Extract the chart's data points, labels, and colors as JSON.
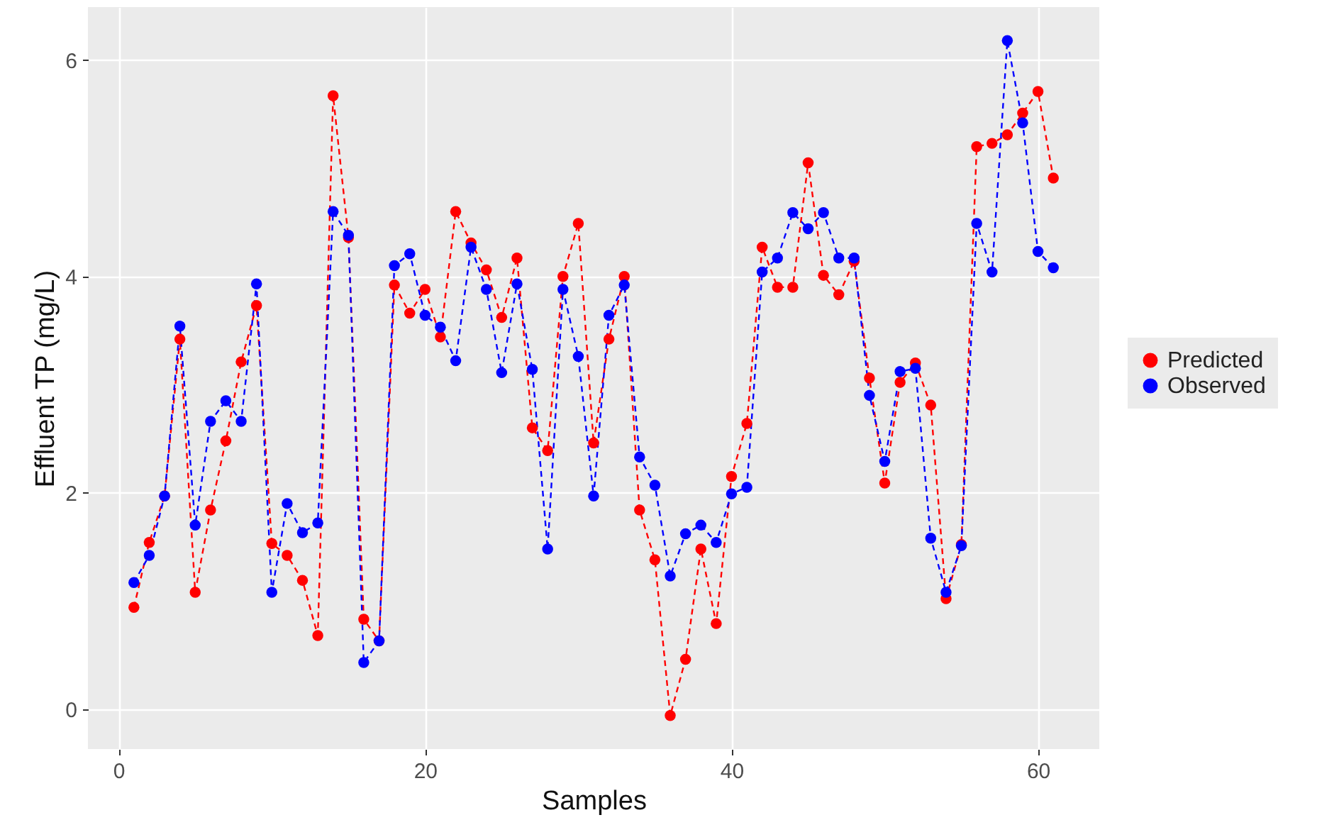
{
  "chart_data": {
    "type": "line",
    "xlabel": "Samples",
    "ylabel": "Effluent TP (mg/L)",
    "x": [
      1,
      2,
      3,
      4,
      5,
      6,
      7,
      8,
      9,
      10,
      11,
      12,
      13,
      14,
      15,
      16,
      17,
      18,
      19,
      20,
      21,
      22,
      23,
      24,
      25,
      26,
      27,
      28,
      29,
      30,
      31,
      32,
      33,
      34,
      35,
      36,
      37,
      38,
      39,
      40,
      41,
      42,
      43,
      44,
      45,
      46,
      47,
      48,
      49,
      50,
      51,
      52,
      53,
      54,
      55,
      56,
      57,
      58,
      59,
      60,
      61
    ],
    "series": [
      {
        "name": "Predicted",
        "color": "#ff0000",
        "values": [
          0.94,
          1.54,
          1.97,
          3.42,
          1.08,
          1.84,
          2.48,
          3.21,
          3.73,
          1.53,
          1.42,
          1.19,
          0.68,
          5.67,
          4.36,
          0.83,
          0.63,
          3.92,
          3.66,
          3.88,
          3.44,
          4.6,
          4.31,
          4.06,
          3.62,
          4.17,
          2.6,
          2.39,
          4.0,
          4.49,
          2.46,
          3.42,
          4.0,
          1.84,
          1.38,
          -0.06,
          0.46,
          1.48,
          0.79,
          2.15,
          2.64,
          4.27,
          3.9,
          3.9,
          5.05,
          4.01,
          3.83,
          4.14,
          3.06,
          2.09,
          3.02,
          3.2,
          2.81,
          1.02,
          1.52,
          5.2,
          5.23,
          5.31,
          5.51,
          5.71,
          4.91
        ]
      },
      {
        "name": "Observed",
        "color": "#0000ff",
        "values": [
          1.17,
          1.42,
          1.97,
          3.54,
          1.7,
          2.66,
          2.85,
          2.66,
          3.93,
          1.08,
          1.9,
          1.63,
          1.72,
          4.6,
          4.38,
          0.43,
          0.63,
          4.1,
          4.21,
          3.64,
          3.53,
          3.22,
          4.27,
          3.88,
          3.11,
          3.93,
          3.14,
          1.48,
          3.88,
          3.26,
          1.97,
          3.64,
          3.92,
          2.33,
          2.07,
          1.23,
          1.62,
          1.7,
          1.54,
          1.99,
          2.05,
          4.04,
          4.17,
          4.59,
          4.44,
          4.59,
          4.17,
          4.17,
          2.9,
          2.29,
          3.12,
          3.15,
          1.58,
          1.08,
          1.51,
          4.49,
          4.04,
          6.18,
          5.42,
          4.23,
          4.08
        ]
      }
    ],
    "xlim": [
      -2,
      64
    ],
    "xticks": [
      0,
      20,
      40,
      60
    ],
    "ylim": [
      -0.37,
      6.49
    ],
    "yticks": [
      0,
      2,
      4,
      6
    ],
    "grid": true,
    "legend": "right",
    "marker": "circle",
    "line_style": "dashed"
  }
}
